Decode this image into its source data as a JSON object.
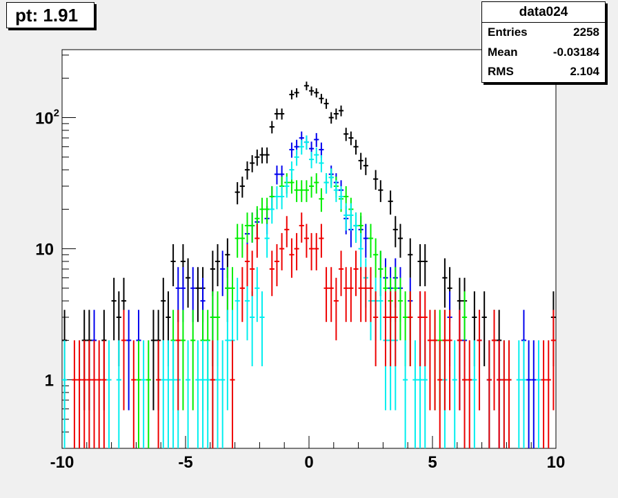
{
  "pt_label": "pt: 1.91",
  "stats": {
    "title": "data024",
    "rows": [
      {
        "label": "Entries",
        "value": "2258"
      },
      {
        "label": "Mean",
        "value": "-0.03184"
      },
      {
        "label": "RMS",
        "value": "2.104"
      }
    ]
  },
  "chart_data": {
    "type": "scatter",
    "x_range": [
      -10,
      10
    ],
    "y_range": [
      0.3,
      330
    ],
    "y_scale": "log",
    "bin_width": 0.2,
    "x_ticks": [
      {
        "value": -10,
        "label": "-10"
      },
      {
        "value": -5,
        "label": "-5"
      },
      {
        "value": 0,
        "label": "0"
      },
      {
        "value": 5,
        "label": "5"
      },
      {
        "value": 10,
        "label": "10"
      }
    ],
    "y_ticks": [
      {
        "value": 1,
        "label": "1"
      },
      {
        "value": 10,
        "label": "10"
      },
      {
        "value": 100,
        "label": "10",
        "sup": "2"
      }
    ],
    "colors": {
      "background": "#f0f0f0",
      "frame": "#ffffff"
    },
    "series": [
      {
        "color": "#000000",
        "points": [
          [
            -9.9,
            2
          ],
          [
            -9.1,
            2
          ],
          [
            -8.9,
            2
          ],
          [
            -8.3,
            2
          ],
          [
            -7.9,
            4
          ],
          [
            -7.7,
            3
          ],
          [
            -7.5,
            4
          ],
          [
            -6.3,
            2
          ],
          [
            -6.1,
            2
          ],
          [
            -5.9,
            4
          ],
          [
            -5.7,
            3
          ],
          [
            -5.5,
            8
          ],
          [
            -5.1,
            8
          ],
          [
            -4.9,
            6
          ],
          [
            -4.5,
            5
          ],
          [
            -4.3,
            5
          ],
          [
            -3.9,
            7
          ],
          [
            -3.7,
            8
          ],
          [
            -3.3,
            9
          ],
          [
            -2.9,
            27
          ],
          [
            -2.7,
            30
          ],
          [
            -2.5,
            40
          ],
          [
            -2.3,
            45
          ],
          [
            -2.1,
            50
          ],
          [
            -1.9,
            52
          ],
          [
            -1.7,
            52
          ],
          [
            -1.5,
            85
          ],
          [
            -1.3,
            107
          ],
          [
            -1.1,
            107
          ],
          [
            -0.7,
            150
          ],
          [
            -0.5,
            155
          ],
          [
            -0.1,
            175
          ],
          [
            0.1,
            160
          ],
          [
            0.3,
            155
          ],
          [
            0.5,
            140
          ],
          [
            0.7,
            128
          ],
          [
            0.9,
            100
          ],
          [
            1.1,
            107
          ],
          [
            1.3,
            113
          ],
          [
            1.5,
            75
          ],
          [
            1.7,
            70
          ],
          [
            1.9,
            60
          ],
          [
            2.1,
            47
          ],
          [
            2.3,
            43
          ],
          [
            2.7,
            34
          ],
          [
            2.9,
            28
          ],
          [
            3.3,
            23
          ],
          [
            3.5,
            14
          ],
          [
            3.7,
            12
          ],
          [
            4.1,
            9
          ],
          [
            4.5,
            8
          ],
          [
            4.7,
            8
          ],
          [
            5.5,
            6
          ],
          [
            5.7,
            5
          ],
          [
            6.1,
            4
          ],
          [
            6.3,
            4
          ],
          [
            6.7,
            3
          ],
          [
            7.1,
            3
          ],
          [
            7.5,
            2
          ],
          [
            7.7,
            2
          ],
          [
            9.9,
            3
          ]
        ]
      },
      {
        "color": "#0000ee",
        "points": [
          [
            -8.7,
            2
          ],
          [
            -7.3,
            2
          ],
          [
            -6.9,
            2
          ],
          [
            -5.3,
            5
          ],
          [
            -5.1,
            5
          ],
          [
            -4.7,
            5
          ],
          [
            -4.3,
            4
          ],
          [
            -3.9,
            3
          ],
          [
            -3.5,
            7
          ],
          [
            -3.3,
            5
          ],
          [
            -2.5,
            13
          ],
          [
            -2.3,
            15
          ],
          [
            -2.1,
            16
          ],
          [
            -1.7,
            17
          ],
          [
            -1.5,
            25
          ],
          [
            -1.3,
            37
          ],
          [
            -1.1,
            37
          ],
          [
            -0.7,
            57
          ],
          [
            -0.5,
            60
          ],
          [
            -0.3,
            70
          ],
          [
            -0.1,
            65
          ],
          [
            0.1,
            58
          ],
          [
            0.3,
            68
          ],
          [
            0.5,
            57
          ],
          [
            0.9,
            37
          ],
          [
            1.1,
            32
          ],
          [
            1.3,
            28
          ],
          [
            1.5,
            17
          ],
          [
            1.7,
            14
          ],
          [
            1.9,
            15
          ],
          [
            2.1,
            14
          ],
          [
            2.3,
            12
          ],
          [
            2.9,
            7
          ],
          [
            3.1,
            6
          ],
          [
            3.3,
            5
          ],
          [
            3.5,
            6
          ],
          [
            3.7,
            5
          ],
          [
            4.1,
            4
          ],
          [
            4.5,
            3
          ],
          [
            5.7,
            3
          ],
          [
            6.1,
            2
          ],
          [
            6.3,
            2
          ],
          [
            6.9,
            2
          ],
          [
            7.3,
            1
          ],
          [
            7.7,
            1
          ],
          [
            8.7,
            2
          ],
          [
            8.9,
            1
          ],
          [
            9.1,
            1
          ]
        ]
      },
      {
        "color": "#00ee00",
        "points": [
          [
            -6.9,
            1
          ],
          [
            -6.5,
            1
          ],
          [
            -5.5,
            2
          ],
          [
            -5.1,
            2
          ],
          [
            -4.7,
            2
          ],
          [
            -4.3,
            2
          ],
          [
            -4.1,
            2
          ],
          [
            -3.9,
            3
          ],
          [
            -3.7,
            3
          ],
          [
            -3.3,
            5
          ],
          [
            -3.1,
            5
          ],
          [
            -2.9,
            12
          ],
          [
            -2.7,
            12
          ],
          [
            -2.5,
            15
          ],
          [
            -2.3,
            15
          ],
          [
            -2.1,
            17
          ],
          [
            -1.9,
            20
          ],
          [
            -1.7,
            20
          ],
          [
            -1.5,
            25
          ],
          [
            -1.1,
            30
          ],
          [
            -0.9,
            32
          ],
          [
            -0.7,
            32
          ],
          [
            -0.5,
            28
          ],
          [
            -0.3,
            28
          ],
          [
            -0.1,
            28
          ],
          [
            0.1,
            30
          ],
          [
            0.3,
            32
          ],
          [
            0.5,
            24
          ],
          [
            0.7,
            32
          ],
          [
            0.9,
            35
          ],
          [
            1.1,
            30
          ],
          [
            1.3,
            24
          ],
          [
            1.5,
            25
          ],
          [
            1.7,
            20
          ],
          [
            1.9,
            15
          ],
          [
            2.1,
            15
          ],
          [
            2.5,
            12
          ],
          [
            2.7,
            9
          ],
          [
            2.9,
            7
          ],
          [
            3.1,
            5
          ],
          [
            3.3,
            4
          ],
          [
            3.5,
            5
          ],
          [
            3.7,
            4
          ],
          [
            3.9,
            3
          ],
          [
            4.1,
            3
          ],
          [
            5.1,
            2
          ],
          [
            5.3,
            2
          ],
          [
            5.5,
            2
          ],
          [
            6.3,
            3
          ]
        ]
      },
      {
        "color": "#00eeee",
        "points": [
          [
            -9.9,
            1
          ],
          [
            -8.1,
            1
          ],
          [
            -7.7,
            1
          ],
          [
            -6.7,
            1
          ],
          [
            -5.9,
            1
          ],
          [
            -5.7,
            1
          ],
          [
            -5.5,
            1
          ],
          [
            -5.3,
            1
          ],
          [
            -4.9,
            1
          ],
          [
            -4.5,
            1
          ],
          [
            -4.3,
            1
          ],
          [
            -4.1,
            1
          ],
          [
            -3.9,
            1
          ],
          [
            -3.7,
            1
          ],
          [
            -3.5,
            1
          ],
          [
            -3.3,
            2
          ],
          [
            -3.1,
            2
          ],
          [
            -2.9,
            4
          ],
          [
            -2.5,
            4
          ],
          [
            -2.3,
            3
          ],
          [
            -2.1,
            5
          ],
          [
            -1.9,
            3
          ],
          [
            -1.7,
            12
          ],
          [
            -1.5,
            20
          ],
          [
            -1.3,
            25
          ],
          [
            -1.1,
            25
          ],
          [
            -0.9,
            30
          ],
          [
            -0.7,
            40
          ],
          [
            -0.5,
            50
          ],
          [
            -0.3,
            60
          ],
          [
            -0.1,
            65
          ],
          [
            0.1,
            48
          ],
          [
            0.3,
            52
          ],
          [
            0.5,
            45
          ],
          [
            0.7,
            32
          ],
          [
            0.9,
            35
          ],
          [
            1.1,
            28
          ],
          [
            1.3,
            25
          ],
          [
            1.5,
            18
          ],
          [
            1.7,
            18
          ],
          [
            1.9,
            15
          ],
          [
            2.1,
            10
          ],
          [
            2.3,
            6
          ],
          [
            2.5,
            4
          ],
          [
            2.7,
            4
          ],
          [
            2.9,
            4
          ],
          [
            3.1,
            2
          ],
          [
            3.3,
            2
          ],
          [
            3.5,
            2
          ],
          [
            3.9,
            1
          ],
          [
            4.3,
            1
          ],
          [
            4.5,
            1
          ],
          [
            4.7,
            1
          ],
          [
            5.5,
            1
          ],
          [
            5.9,
            1
          ],
          [
            6.3,
            1
          ],
          [
            6.7,
            1
          ],
          [
            7.3,
            1
          ],
          [
            7.9,
            1
          ],
          [
            8.1,
            1
          ],
          [
            8.5,
            1
          ],
          [
            8.7,
            1
          ],
          [
            9.3,
            1
          ]
        ]
      },
      {
        "color": "#ee0000",
        "points": [
          [
            -9.5,
            1
          ],
          [
            -9.3,
            1
          ],
          [
            -9.1,
            1
          ],
          [
            -8.9,
            1
          ],
          [
            -8.7,
            1
          ],
          [
            -8.5,
            1
          ],
          [
            -8.3,
            1
          ],
          [
            -7.5,
            2
          ],
          [
            -7.1,
            1
          ],
          [
            -6.1,
            1
          ],
          [
            -5.3,
            2
          ],
          [
            -3.9,
            1
          ],
          [
            -3.1,
            1
          ],
          [
            -2.7,
            5
          ],
          [
            -2.5,
            8
          ],
          [
            -2.3,
            7
          ],
          [
            -2.1,
            12
          ],
          [
            -1.5,
            7
          ],
          [
            -1.3,
            8
          ],
          [
            -1.1,
            10
          ],
          [
            -0.9,
            14
          ],
          [
            -0.7,
            9
          ],
          [
            -0.5,
            10
          ],
          [
            -0.3,
            15
          ],
          [
            -0.1,
            12
          ],
          [
            0.1,
            10
          ],
          [
            0.3,
            10
          ],
          [
            0.5,
            12
          ],
          [
            0.7,
            5
          ],
          [
            0.9,
            5
          ],
          [
            1.1,
            4
          ],
          [
            1.3,
            7
          ],
          [
            1.5,
            5
          ],
          [
            1.7,
            5
          ],
          [
            1.9,
            7
          ],
          [
            2.1,
            5
          ],
          [
            2.3,
            5
          ],
          [
            2.5,
            5
          ],
          [
            2.7,
            3
          ],
          [
            3.1,
            3
          ],
          [
            3.3,
            3
          ],
          [
            3.5,
            3
          ],
          [
            4.1,
            3
          ],
          [
            4.5,
            3
          ],
          [
            4.7,
            3
          ],
          [
            4.9,
            2
          ],
          [
            5.1,
            2
          ],
          [
            5.3,
            1
          ],
          [
            5.5,
            2
          ],
          [
            5.7,
            2
          ],
          [
            6.1,
            2
          ],
          [
            6.3,
            1
          ],
          [
            6.5,
            1
          ],
          [
            6.9,
            2
          ],
          [
            7.3,
            1
          ],
          [
            7.5,
            2
          ],
          [
            7.7,
            1
          ],
          [
            7.9,
            1
          ],
          [
            8.1,
            1
          ],
          [
            9.5,
            1
          ],
          [
            9.7,
            1
          ],
          [
            9.9,
            2
          ]
        ]
      }
    ]
  }
}
